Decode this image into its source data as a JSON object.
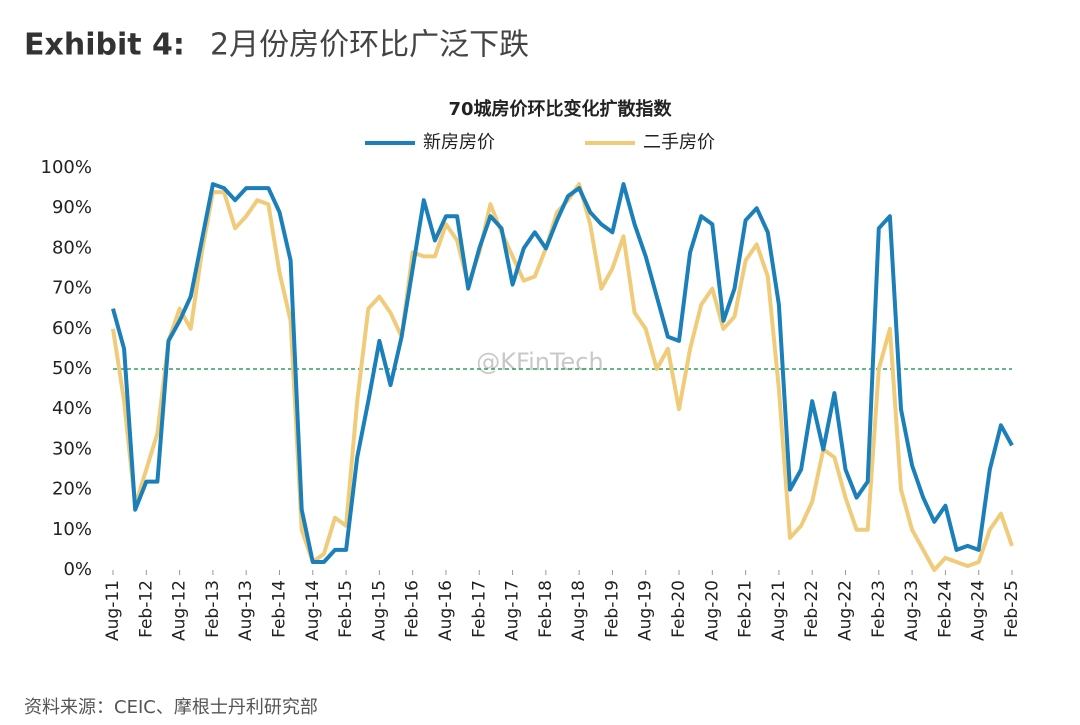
{
  "header": {
    "exhibit": "Exhibit 4:",
    "title": "2月份房价环比广泛下跌"
  },
  "chart_data": {
    "type": "line",
    "title": "70城房价环比变化扩散指数",
    "categories": [
      "Aug-11",
      null,
      null,
      "Feb-12",
      null,
      null,
      "Aug-12",
      null,
      null,
      "Feb-13",
      null,
      null,
      "Aug-13",
      null,
      null,
      "Feb-14",
      null,
      null,
      "Aug-14",
      null,
      null,
      "Feb-15",
      null,
      null,
      "Aug-15",
      null,
      null,
      "Feb-16",
      null,
      null,
      "Aug-16",
      null,
      null,
      "Feb-17",
      null,
      null,
      "Aug-17",
      null,
      null,
      "Feb-18",
      null,
      null,
      "Aug-18",
      null,
      null,
      "Feb-19",
      null,
      null,
      "Aug-19",
      null,
      null,
      "Feb-20",
      null,
      null,
      "Aug-20",
      null,
      null,
      "Feb-21",
      null,
      null,
      "Aug-21",
      null,
      null,
      "Feb-22",
      null,
      null,
      "Aug-22",
      null,
      null,
      "Feb-23",
      null,
      null,
      "Aug-23",
      null,
      null,
      "Feb-24",
      null,
      null,
      "Aug-24",
      null,
      null,
      "Feb-25"
    ],
    "series": [
      {
        "name": "新房房价",
        "color": "#1b7fb9",
        "values": [
          65,
          55,
          15,
          22,
          22,
          57,
          62,
          68,
          82,
          96,
          95,
          92,
          95,
          95,
          95,
          89,
          77,
          15,
          2,
          2,
          5,
          5,
          28,
          42,
          57,
          46,
          58,
          75,
          92,
          82,
          88,
          88,
          70,
          80,
          88,
          85,
          71,
          80,
          84,
          80,
          87,
          93,
          95,
          89,
          86,
          84,
          96,
          86,
          78,
          68,
          58,
          57,
          79,
          88,
          86,
          62,
          70,
          87,
          90,
          84,
          66,
          20,
          25,
          42,
          30,
          44,
          25,
          18,
          22,
          85,
          88,
          40,
          26,
          18,
          12,
          16,
          5,
          6,
          5,
          25,
          36,
          31
        ]
      },
      {
        "name": "二手房价",
        "color": "#f0cc7a",
        "values": [
          60,
          42,
          16,
          25,
          34,
          57,
          65,
          60,
          79,
          94,
          94,
          85,
          88,
          92,
          91,
          74,
          62,
          10,
          2,
          4,
          13,
          11,
          42,
          65,
          68,
          64,
          58,
          79,
          78,
          78,
          86,
          82,
          71,
          79,
          91,
          84,
          78,
          72,
          73,
          80,
          89,
          92,
          96,
          86,
          70,
          75,
          83,
          64,
          60,
          50,
          55,
          40,
          55,
          66,
          70,
          60,
          63,
          77,
          81,
          73,
          45,
          8,
          11,
          17,
          30,
          28,
          18,
          10,
          10,
          50,
          60,
          20,
          10,
          5,
          0,
          3,
          2,
          1,
          2,
          10,
          14,
          6
        ]
      }
    ],
    "ylim": [
      0,
      100
    ],
    "yticks": [
      {
        "value": 0,
        "label": "0%"
      },
      {
        "value": 10,
        "label": "10%"
      },
      {
        "value": 20,
        "label": "20%"
      },
      {
        "value": 30,
        "label": "30%"
      },
      {
        "value": 40,
        "label": "40%"
      },
      {
        "value": 50,
        "label": "50%"
      },
      {
        "value": 60,
        "label": "60%"
      },
      {
        "value": 70,
        "label": "70%"
      },
      {
        "value": 80,
        "label": "80%"
      },
      {
        "value": 90,
        "label": "90%"
      },
      {
        "value": 100,
        "label": "100%"
      }
    ],
    "reference_line": {
      "value": 50,
      "color": "#2ca25f"
    },
    "watermark": "@KFinTech"
  },
  "source": "资料来源：CEIC、摩根士丹利研究部"
}
